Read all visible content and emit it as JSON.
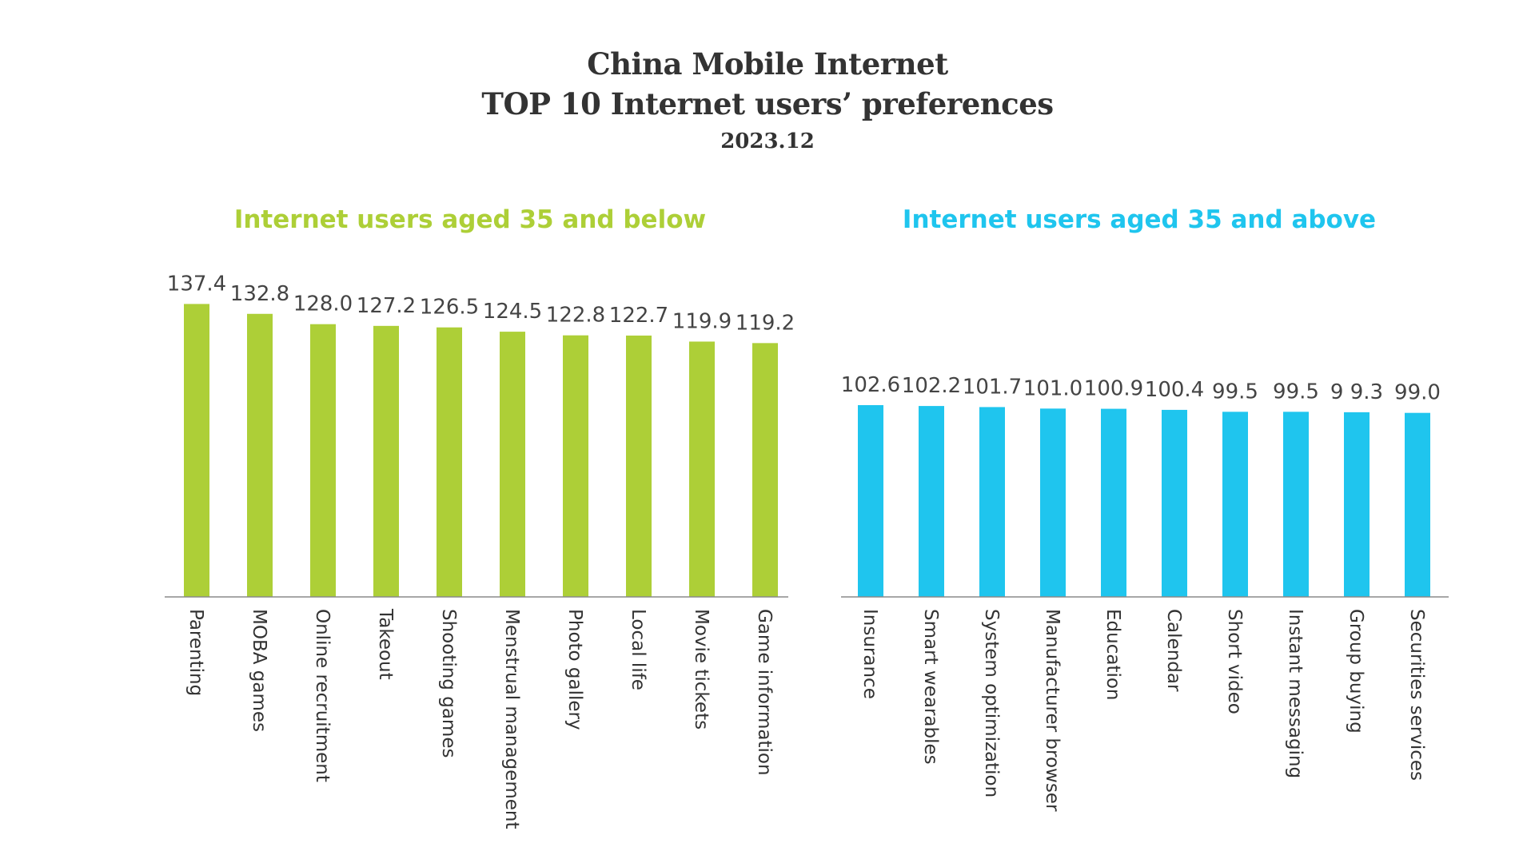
{
  "title": {
    "line1": "China Mobile Internet",
    "line2": "TOP 10 Internet users’ preferences",
    "line3": "2023.12"
  },
  "chart_data": [
    {
      "type": "bar",
      "title": "Internet users aged 35 and below",
      "color": "#adcf37",
      "categories": [
        "Parenting",
        "MOBA games",
        "Online recruitment",
        "Takeout",
        "Shooting games",
        "Menstrual management",
        "Photo gallery",
        "Local life",
        "Movie tickets",
        "Game information"
      ],
      "values": [
        137.4,
        132.8,
        128.0,
        127.2,
        126.5,
        124.5,
        122.8,
        122.7,
        119.9,
        119.2
      ],
      "value_labels": [
        "137.4",
        "132.8",
        "128.0",
        "127.2",
        "126.5",
        "124.5",
        "122.8",
        "122.7",
        "119.9",
        "119.2"
      ],
      "grid": false,
      "legend": "none"
    },
    {
      "type": "bar",
      "title": "Internet users aged 35 and above",
      "color": "#1fc5ee",
      "categories": [
        "Insurance",
        "Smart wearables",
        "System optimization",
        "Manufacturer browser",
        "Education",
        "Calendar",
        "Short video",
        "Instant messaging",
        "Group buying",
        "Securities services"
      ],
      "values": [
        102.6,
        102.2,
        101.7,
        101.0,
        100.9,
        100.4,
        99.5,
        99.5,
        99.3,
        99.0
      ],
      "value_labels": [
        "102.6",
        "102.2",
        "101.7",
        "101.0",
        "100.9",
        "100.4",
        "99.5",
        "99.5",
        "9 9.3",
        "99.0"
      ],
      "grid": false,
      "legend": "none"
    }
  ]
}
